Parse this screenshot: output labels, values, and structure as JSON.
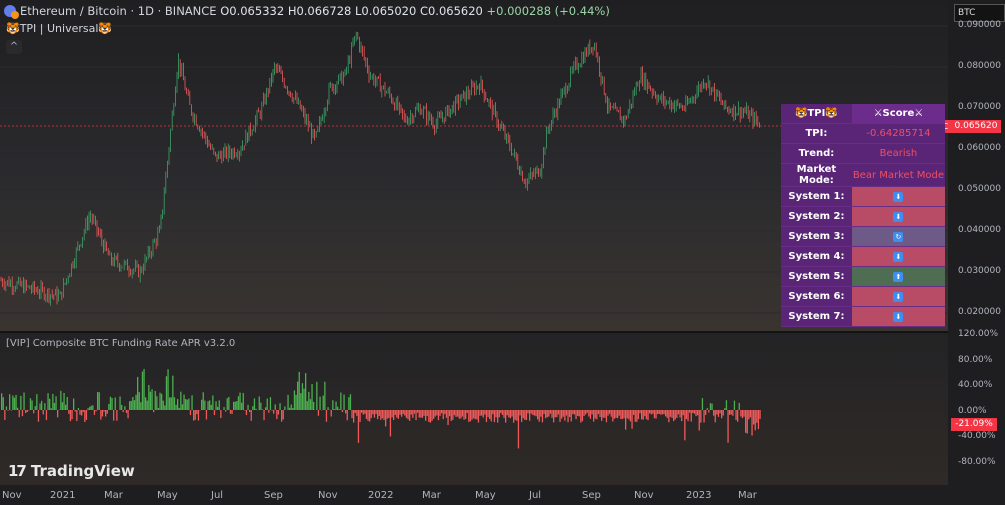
{
  "header": {
    "symbol": "Ethereum / Bitcoin · 1D · BINANCE",
    "open": "O0.065332",
    "high": "H0.066728",
    "low": "L0.065020",
    "close": "C0.065620",
    "change": "+0.000288 (+0.44%)",
    "indicator": "🐯TPI | Universal🐯",
    "collapse_icon": "^"
  },
  "currency_box": "BTC",
  "price_axis": [
    "0.090000",
    "0.080000",
    "0.070000",
    "0.060000",
    "0.050000",
    "0.040000",
    "0.030000",
    "0.020000"
  ],
  "last_price": "0.065620",
  "symbol_tag": "ETHBTC",
  "tpi_table": {
    "header_left": "🐯TPI🐯",
    "header_right": "⚔Score⚔",
    "rows": [
      {
        "label": "TPI:",
        "value": "-0.64285714"
      },
      {
        "label": "Trend:",
        "value": "Bearish"
      },
      {
        "label": "Market Mode:",
        "value": "Bear Market Mode"
      }
    ],
    "systems": [
      {
        "label": "System 1:",
        "state": "down"
      },
      {
        "label": "System 2:",
        "state": "down"
      },
      {
        "label": "System 3:",
        "state": "neutral"
      },
      {
        "label": "System 4:",
        "state": "down"
      },
      {
        "label": "System 5:",
        "state": "up"
      },
      {
        "label": "System 6:",
        "state": "down"
      },
      {
        "label": "System 7:",
        "state": "down"
      }
    ]
  },
  "funding": {
    "label": "[VIP] Composite BTC Funding Rate APR v3.2.0",
    "axis": [
      "120.00%",
      "80.00%",
      "40.00%",
      "0.00%",
      "-40.00%",
      "-80.00%"
    ],
    "current": "-21.09%"
  },
  "x_axis": [
    "Nov",
    "2021",
    "Mar",
    "May",
    "Jul",
    "Sep",
    "Nov",
    "2022",
    "Mar",
    "May",
    "Jul",
    "Sep",
    "Nov",
    "2023",
    "Mar"
  ],
  "brand": "TradingView",
  "colors": {
    "up": "#3fa168",
    "down": "#f05a5a",
    "accent": "#f23645",
    "panel": "#5a2576"
  }
}
